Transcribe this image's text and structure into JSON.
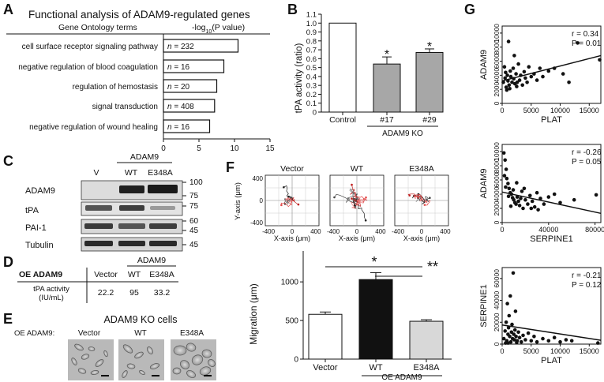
{
  "panel_letters": [
    "A",
    "B",
    "C",
    "D",
    "E",
    "F",
    "G"
  ],
  "A": {
    "title": "Functional analysis of ADAM9-regulated genes",
    "col_terms": "Gene Ontology terms",
    "col_p": "-log10(P value)",
    "axis_ticks": [
      "0",
      "5",
      "10",
      "15"
    ],
    "n_prefix": "n = "
  },
  "B": {
    "axis_ticks": [
      "0",
      "0.1",
      "0.2",
      "0.3",
      "0.4",
      "0.5",
      "0.6",
      "0.7",
      "0.8",
      "0.9",
      "1.0",
      "1.1"
    ],
    "bracket_label": "ADAM9 KO",
    "sig": "*"
  },
  "C": {
    "header_label": "ADAM9",
    "lanes": [
      "V",
      "WT",
      "E348A"
    ],
    "blots": [
      {
        "name": "ADAM9",
        "markers": [
          "100",
          "75"
        ]
      },
      {
        "name": "tPA",
        "markers": [
          "75"
        ]
      },
      {
        "name": "PAI-1",
        "markers": [
          "60",
          "45"
        ]
      },
      {
        "name": "Tubulin",
        "markers": [
          "45"
        ]
      }
    ]
  },
  "D": {
    "oe_label": "OE ADAM9",
    "header_label": "ADAM9",
    "columns": [
      "Vector",
      "WT",
      "E348A"
    ],
    "row_label_1": "tPA activity",
    "row_label_2": "(IU/mL)",
    "values": [
      "22.2",
      "95",
      "33.2"
    ]
  },
  "E": {
    "title": "ADAM9 KO cells",
    "oe_label": "OE ADAM9:",
    "images": [
      "Vector",
      "WT",
      "E348A"
    ]
  },
  "F": {
    "tracks": [
      "Vector",
      "WT",
      "E348A"
    ],
    "y_axis_label": "Y-axis (μm)",
    "x_axis_label": "X-axis (μm)",
    "track_ticks": [
      "400",
      "0",
      "-400"
    ],
    "x_track_ticks": [
      "-400",
      "0",
      "400"
    ],
    "bar_ticks": [
      "0",
      "500",
      "1000"
    ],
    "oe_label": "OE ADAM9",
    "sig1": "*",
    "sig2": "**"
  },
  "G": {
    "plots": [
      {
        "ylabel": "ADAM9",
        "xlabel": "PLAT",
        "r": "r = 0.34",
        "p": "P = 0.01",
        "yticks": [
          "0",
          "2000",
          "4000",
          "6000",
          "8000",
          "10000"
        ],
        "xticks": [
          "0",
          "5000",
          "10000",
          "15000"
        ]
      },
      {
        "ylabel": "ADAM9",
        "xlabel": "SERPINE1",
        "r": "r = -0.26",
        "p": "P = 0.05",
        "yticks": [
          "0",
          "2000",
          "4000",
          "6000",
          "8000",
          "10000"
        ],
        "xticks": [
          "0",
          "40000",
          "80000"
        ]
      },
      {
        "ylabel": "SERPINE1",
        "xlabel": "PLAT",
        "r": "r = -0.21",
        "p": "P = 0.12",
        "yticks": [
          "0",
          "20000",
          "40000",
          "60000"
        ],
        "xticks": [
          "0",
          "5000",
          "10000",
          "15000"
        ]
      }
    ]
  },
  "chart_data": [
    {
      "panel": "A",
      "type": "bar",
      "orientation": "horizontal",
      "title": "Functional analysis of ADAM9-regulated genes",
      "xlabel": "-log10(P value)",
      "ylabel": "Gene Ontology terms",
      "xlim": [
        0,
        15
      ],
      "categories": [
        "cell surface receptor signaling pathway",
        "negative regulation of blood coagulation",
        "regulation of hemostasis",
        "signal transduction",
        "negative regulation of wound healing"
      ],
      "values": [
        10.5,
        8.5,
        7.5,
        7.2,
        6.5
      ],
      "counts": [
        "232",
        "16",
        "20",
        "408",
        "16"
      ]
    },
    {
      "panel": "B",
      "type": "bar",
      "ylabel": "tPA activity (ratio)",
      "ylim": [
        0,
        1.1
      ],
      "categories": [
        "Control",
        "#17",
        "#29"
      ],
      "values": [
        1.0,
        0.54,
        0.67
      ],
      "errors": [
        0,
        0.08,
        0.04
      ],
      "significant": [
        false,
        true,
        true
      ],
      "colors": [
        "#ffffff",
        "#a7a7a7",
        "#a7a7a7"
      ]
    },
    {
      "panel": "F",
      "type": "bar",
      "ylabel": "Migration (μm)",
      "ylim": [
        0,
        1400
      ],
      "categories": [
        "Vector",
        "WT",
        "E348A"
      ],
      "values": [
        580,
        1030,
        490
      ],
      "errors": [
        30,
        90,
        20
      ],
      "colors": [
        "#ffffff",
        "#111111",
        "#d8d8d8"
      ]
    },
    {
      "panel": "G1",
      "type": "scatter",
      "xlabel": "PLAT",
      "ylabel": "ADAM9",
      "xlim": [
        0,
        17000
      ],
      "ylim": [
        0,
        11000
      ],
      "points": [
        [
          200,
          3000
        ],
        [
          500,
          3600
        ],
        [
          700,
          2300
        ],
        [
          900,
          4000
        ],
        [
          1000,
          3200
        ],
        [
          1200,
          2600
        ],
        [
          1400,
          4600
        ],
        [
          1500,
          3800
        ],
        [
          1700,
          3000
        ],
        [
          1900,
          5000
        ],
        [
          2000,
          3500
        ],
        [
          2200,
          2800
        ],
        [
          2400,
          4200
        ],
        [
          2600,
          3000
        ],
        [
          2800,
          5600
        ],
        [
          3000,
          3300
        ],
        [
          3200,
          4000
        ],
        [
          3500,
          2600
        ],
        [
          3800,
          4500
        ],
        [
          4000,
          3600
        ],
        [
          4300,
          3000
        ],
        [
          4600,
          5200
        ],
        [
          5000,
          3800
        ],
        [
          5500,
          4200
        ],
        [
          6000,
          3300
        ],
        [
          6500,
          5000
        ],
        [
          7000,
          3800
        ],
        [
          8000,
          4600
        ],
        [
          9000,
          5000
        ],
        [
          10500,
          4200
        ],
        [
          11500,
          3000
        ],
        [
          13000,
          8600
        ],
        [
          16800,
          6200
        ],
        [
          400,
          5200
        ],
        [
          800,
          1900
        ],
        [
          1300,
          2100
        ],
        [
          2100,
          6800
        ],
        [
          1100,
          8800
        ],
        [
          600,
          4400
        ],
        [
          2500,
          2400
        ]
      ],
      "fit": [
        [
          0,
          3200
        ],
        [
          17000,
          6800
        ]
      ],
      "r": "r = 0.34",
      "p": "P = 0.01"
    },
    {
      "panel": "G2",
      "type": "scatter",
      "xlabel": "SERPINE1",
      "ylabel": "ADAM9",
      "xlim": [
        0,
        85000
      ],
      "ylim": [
        0,
        11000
      ],
      "points": [
        [
          1500,
          9800
        ],
        [
          2500,
          8800
        ],
        [
          3500,
          7500
        ],
        [
          4000,
          6200
        ],
        [
          5000,
          5500
        ],
        [
          6000,
          4800
        ],
        [
          7000,
          4200
        ],
        [
          8000,
          4000
        ],
        [
          9000,
          3500
        ],
        [
          10000,
          3200
        ],
        [
          11000,
          2800
        ],
        [
          12000,
          2600
        ],
        [
          13000,
          3600
        ],
        [
          14000,
          3000
        ],
        [
          15000,
          2400
        ],
        [
          16000,
          3400
        ],
        [
          17000,
          4400
        ],
        [
          18000,
          2000
        ],
        [
          20000,
          3200
        ],
        [
          22000,
          2600
        ],
        [
          24000,
          3800
        ],
        [
          26000,
          3000
        ],
        [
          28000,
          2200
        ],
        [
          30000,
          4200
        ],
        [
          33000,
          3400
        ],
        [
          36000,
          2600
        ],
        [
          40000,
          3600
        ],
        [
          45000,
          4000
        ],
        [
          50000,
          2800
        ],
        [
          62000,
          3200
        ],
        [
          81000,
          3900
        ],
        [
          2000,
          6600
        ],
        [
          3000,
          5000
        ],
        [
          5500,
          3700
        ],
        [
          7500,
          2300
        ],
        [
          9500,
          4600
        ],
        [
          12500,
          5600
        ],
        [
          19000,
          4800
        ],
        [
          25000,
          2000
        ],
        [
          31000,
          1800
        ]
      ],
      "fit": [
        [
          0,
          4300
        ],
        [
          85000,
          1300
        ]
      ],
      "r": "r = -0.26",
      "p": "P = 0.05"
    },
    {
      "panel": "G3",
      "type": "scatter",
      "xlabel": "PLAT",
      "ylabel": "SERPINE1",
      "xlim": [
        0,
        17000
      ],
      "ylim": [
        0,
        70000
      ],
      "points": [
        [
          300,
          5000
        ],
        [
          500,
          12000
        ],
        [
          700,
          20000
        ],
        [
          800,
          3000
        ],
        [
          1000,
          9000
        ],
        [
          1100,
          15000
        ],
        [
          1200,
          26000
        ],
        [
          1300,
          7000
        ],
        [
          1500,
          2000
        ],
        [
          1600,
          11000
        ],
        [
          1700,
          18000
        ],
        [
          1800,
          5000
        ],
        [
          2000,
          9000
        ],
        [
          2100,
          4000
        ],
        [
          2200,
          13000
        ],
        [
          2400,
          7000
        ],
        [
          2600,
          3000
        ],
        [
          2800,
          11000
        ],
        [
          3000,
          6000
        ],
        [
          3300,
          2000
        ],
        [
          3600,
          8000
        ],
        [
          4000,
          4000
        ],
        [
          4500,
          10000
        ],
        [
          5000,
          3000
        ],
        [
          5500,
          7000
        ],
        [
          6000,
          2000
        ],
        [
          7000,
          5000
        ],
        [
          8000,
          3000
        ],
        [
          9000,
          6000
        ],
        [
          10000,
          2000
        ],
        [
          11000,
          4000
        ],
        [
          12000,
          3000
        ],
        [
          16500,
          1000
        ],
        [
          1400,
          44000
        ],
        [
          1900,
          65000
        ],
        [
          900,
          37000
        ],
        [
          2300,
          30000
        ],
        [
          600,
          1000
        ],
        [
          1000,
          1000
        ],
        [
          2500,
          1500
        ]
      ],
      "fit": [
        [
          0,
          17500
        ],
        [
          17000,
          3500
        ]
      ],
      "r": "r = -0.21",
      "p": "P = 0.12"
    }
  ]
}
